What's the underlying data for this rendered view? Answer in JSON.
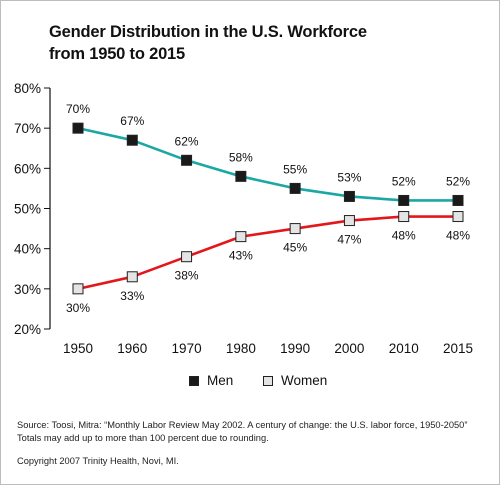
{
  "chart_data": {
    "type": "line",
    "title_lines": [
      "Gender Distribution in the U.S. Workforce",
      "from 1950 to 2015"
    ],
    "categories": [
      "1950",
      "1960",
      "1970",
      "1980",
      "1990",
      "2000",
      "2010",
      "2015"
    ],
    "series": [
      {
        "name": "Men",
        "values": [
          70,
          67,
          62,
          58,
          55,
          53,
          52,
          52
        ],
        "labels": [
          "70%",
          "67%",
          "62%",
          "58%",
          "55%",
          "53%",
          "52%",
          "52%"
        ],
        "color": "#1aa7a5",
        "marker_fill": "#1a1a1a"
      },
      {
        "name": "Women",
        "values": [
          30,
          33,
          38,
          43,
          45,
          47,
          48,
          48
        ],
        "labels": [
          "30%",
          "33%",
          "38%",
          "43%",
          "45%",
          "47%",
          "48%",
          "48%"
        ],
        "color": "#e3171b",
        "marker_fill": "#e4e4e4"
      }
    ],
    "yticks": [
      "80%",
      "70%",
      "60%",
      "50%",
      "40%",
      "30%",
      "20%"
    ],
    "ytick_values": [
      80,
      70,
      60,
      50,
      40,
      30,
      20
    ],
    "ylim": [
      20,
      80
    ],
    "xlabel": "",
    "ylabel": "",
    "grid": false,
    "legend": "bottom-center"
  },
  "source": {
    "line1": "Source: Toosi, Mitra:  “Monthly Labor Review May 2002. A century of change: the U.S. labor force, 1950-2050”",
    "line2": "Totals may add up to more than 100 percent due to rounding."
  },
  "copyright": "Copyright 2007 Trinity Health, Novi, MI."
}
